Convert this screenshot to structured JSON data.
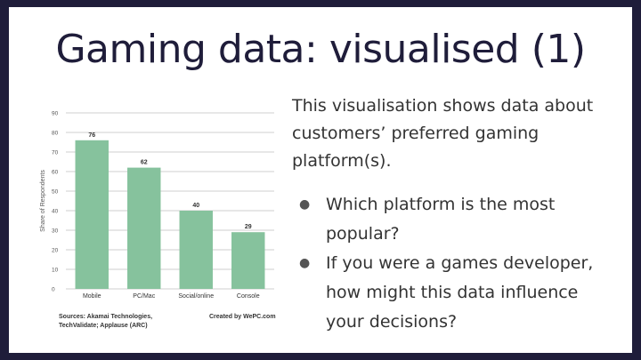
{
  "slide": {
    "title": "Gaming data: visualised (1)",
    "intro": "This visualisation shows data about customers’ preferred gaming platform(s).",
    "bullets": [
      "Which platform is the most popular?",
      "If you were a games developer, how might this data influence your decisions?"
    ]
  },
  "chart_data": {
    "type": "bar",
    "categories": [
      "Mobile",
      "PC/Mac",
      "Social/online",
      "Console"
    ],
    "values": [
      76,
      62,
      40,
      29
    ],
    "ylabel": "Share of Respondents",
    "ylim": [
      0,
      90
    ],
    "yticks": [
      0,
      10,
      20,
      30,
      40,
      50,
      60,
      70,
      80,
      90
    ],
    "grid": true,
    "bar_color": "#86c29d",
    "sources": "Sources: Akamai Technologies, TechValidate; Applause (ARC)",
    "credit": "Created by WePC.com"
  },
  "theme": {
    "frame": "#1f1d3a",
    "title_color": "#1f1d3a"
  }
}
